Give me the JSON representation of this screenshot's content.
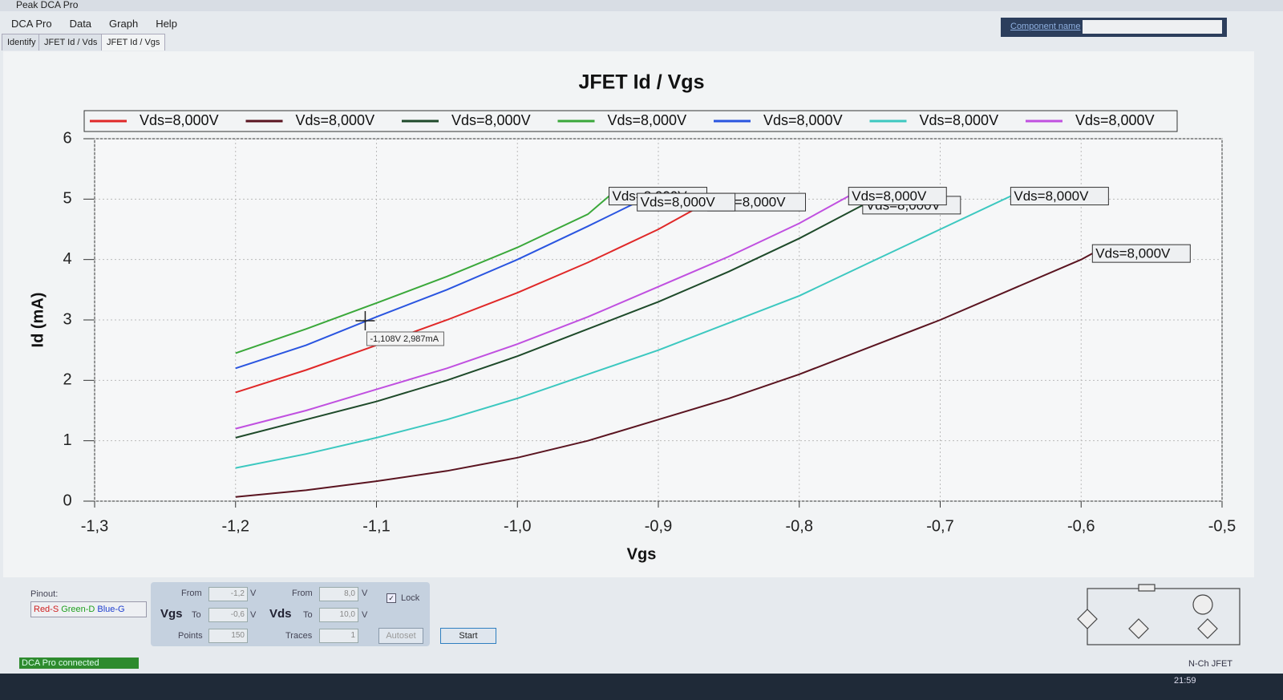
{
  "window": {
    "title": "Peak DCA Pro"
  },
  "menu": [
    "DCA Pro",
    "Data",
    "Graph",
    "Help"
  ],
  "tabs": [
    "Identify",
    "JFET Id / Vds",
    "JFET Id / Vgs"
  ],
  "component_name_label": "Component name",
  "chart_data": {
    "type": "line",
    "title": "JFET Id / Vgs",
    "x_label": "Vgs",
    "y_label": "Id (mA)",
    "xlim": [
      -1.3,
      -0.5
    ],
    "xticks": [
      {
        "value": -1.3,
        "label": "-1,3"
      },
      {
        "value": -1.2,
        "label": "-1,2"
      },
      {
        "value": -1.1,
        "label": "-1,1"
      },
      {
        "value": -1.0,
        "label": "-1,0"
      },
      {
        "value": -0.9,
        "label": "-0,9"
      },
      {
        "value": -0.8,
        "label": "-0,8"
      },
      {
        "value": -0.7,
        "label": "-0,7"
      },
      {
        "value": -0.6,
        "label": "-0,6"
      },
      {
        "value": -0.5,
        "label": "-0,5"
      }
    ],
    "ylim": [
      0,
      6
    ],
    "yticks": [
      0,
      1,
      2,
      3,
      4,
      5,
      6
    ],
    "grid": true,
    "legend": "top",
    "series": [
      {
        "name": "Vds=8,000V",
        "color": "#e02828",
        "x": [
          -1.2,
          -1.15,
          -1.1,
          -1.05,
          -1.0,
          -0.95,
          -0.9,
          -0.865
        ],
        "values": [
          1.8,
          2.17,
          2.58,
          3.0,
          3.45,
          3.95,
          4.5,
          4.95
        ]
      },
      {
        "name": "Vds=8,000V",
        "color": "#5a1420",
        "x": [
          -1.2,
          -1.15,
          -1.1,
          -1.05,
          -1.0,
          -0.95,
          -0.9,
          -0.85,
          -0.8,
          -0.75,
          -0.7,
          -0.65,
          -0.6,
          -0.592
        ],
        "values": [
          0.07,
          0.18,
          0.33,
          0.5,
          0.72,
          1.0,
          1.35,
          1.7,
          2.1,
          2.55,
          3.0,
          3.5,
          4.0,
          4.1
        ]
      },
      {
        "name": "Vds=8,000V",
        "color": "#1e4a2a",
        "x": [
          -1.2,
          -1.15,
          -1.1,
          -1.05,
          -1.0,
          -0.95,
          -0.9,
          -0.85,
          -0.8,
          -0.755
        ],
        "values": [
          1.05,
          1.35,
          1.65,
          2.0,
          2.4,
          2.85,
          3.3,
          3.8,
          4.35,
          4.9
        ]
      },
      {
        "name": "Vds=8,000V",
        "color": "#3aa83a",
        "x": [
          -1.2,
          -1.15,
          -1.1,
          -1.05,
          -1.0,
          -0.95,
          -0.935
        ],
        "values": [
          2.45,
          2.85,
          3.28,
          3.72,
          4.2,
          4.75,
          5.05
        ]
      },
      {
        "name": "Vds=8,000V",
        "color": "#2a55e0",
        "x": [
          -1.2,
          -1.15,
          -1.1,
          -1.05,
          -1.0,
          -0.95,
          -0.915
        ],
        "values": [
          2.2,
          2.58,
          3.05,
          3.5,
          4.0,
          4.55,
          4.95
        ]
      },
      {
        "name": "Vds=8,000V",
        "color": "#3cc8c0",
        "x": [
          -1.2,
          -1.15,
          -1.1,
          -1.05,
          -1.0,
          -0.95,
          -0.9,
          -0.85,
          -0.8,
          -0.75,
          -0.7,
          -0.65
        ],
        "values": [
          0.55,
          0.78,
          1.05,
          1.35,
          1.7,
          2.1,
          2.5,
          2.95,
          3.4,
          3.95,
          4.5,
          5.05
        ]
      },
      {
        "name": "Vds=8,000V",
        "color": "#c050e0",
        "x": [
          -1.2,
          -1.15,
          -1.1,
          -1.05,
          -1.0,
          -0.95,
          -0.9,
          -0.85,
          -0.8,
          -0.765
        ],
        "values": [
          1.2,
          1.5,
          1.85,
          2.2,
          2.6,
          3.05,
          3.55,
          4.05,
          4.6,
          5.05
        ]
      }
    ],
    "annotation": {
      "text": "-1,108V 2,987mA",
      "x": -1.108,
      "y": 2.987
    }
  },
  "controls": {
    "pinout_label": "Pinout:",
    "pinout": [
      {
        "text": "Red-S",
        "color": "#d02020"
      },
      {
        "text": "Green-D",
        "color": "#20a020"
      },
      {
        "text": "Blue-G",
        "color": "#2040d0"
      }
    ],
    "from_label": "From",
    "to_label": "To",
    "unit": "V",
    "vgs": {
      "label": "Vgs",
      "from": "-1,2",
      "to": "-0,6",
      "points_label": "Points",
      "points": "150"
    },
    "vds": {
      "label": "Vds",
      "from": "8,0",
      "to": "10,0",
      "traces_label": "Traces",
      "traces": "1"
    },
    "lock": "Lock",
    "autoset": "Autoset",
    "start": "Start"
  },
  "status": "DCA Pro connected",
  "device_type": "N-Ch JFET",
  "clock": "21:59"
}
